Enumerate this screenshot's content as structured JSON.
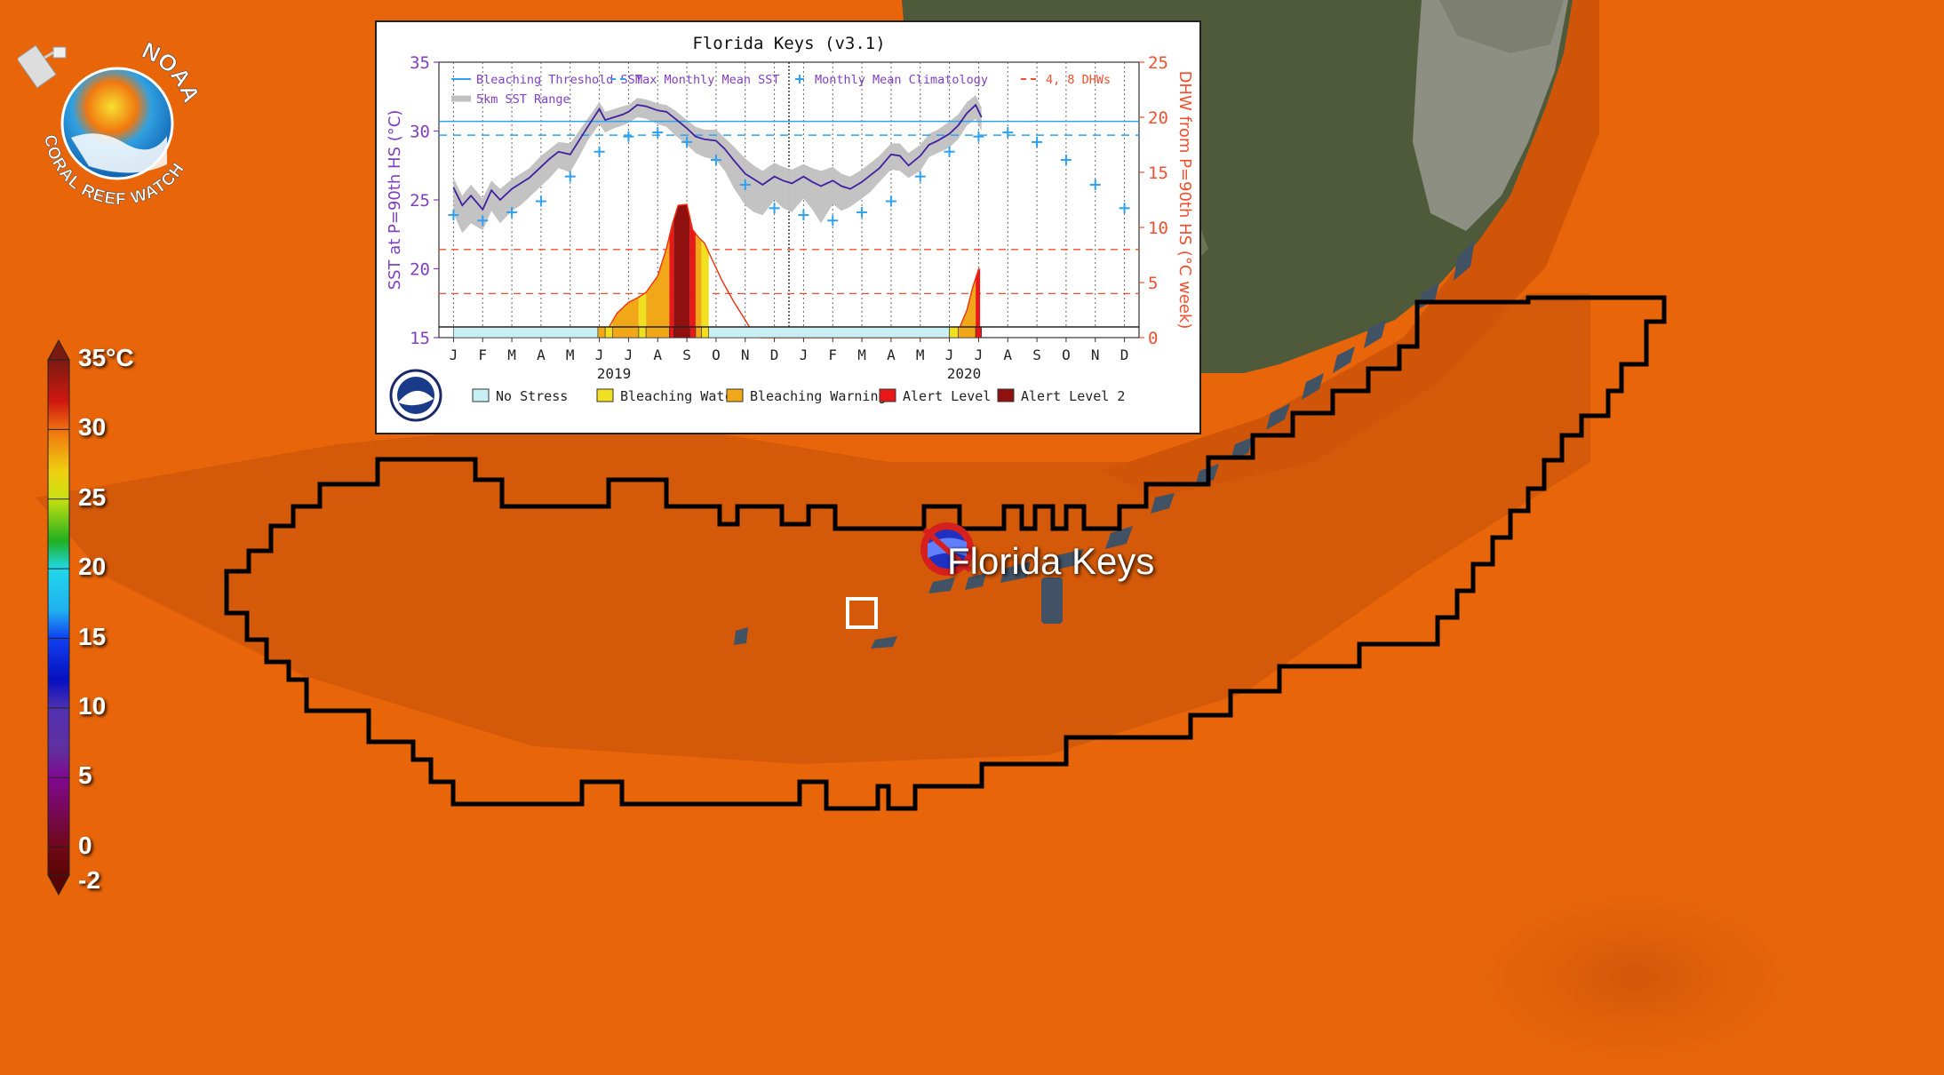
{
  "agency_logo": {
    "text_top": "NOAA",
    "text_bottom": "CORAL REEF WATCH"
  },
  "colorbar": {
    "labels": [
      "35°C",
      "30",
      "25",
      "20",
      "15",
      "10",
      "5",
      "0",
      "-2"
    ],
    "stops": [
      {
        "value": 35,
        "color": "#7a1a10"
      },
      {
        "value": 32,
        "color": "#d01810"
      },
      {
        "value": 30,
        "color": "#f07010"
      },
      {
        "value": 27,
        "color": "#f0d010"
      },
      {
        "value": 25,
        "color": "#c8e010"
      },
      {
        "value": 22,
        "color": "#20b020"
      },
      {
        "value": 20,
        "color": "#20d8e8"
      },
      {
        "value": 17,
        "color": "#20b0f0"
      },
      {
        "value": 15,
        "color": "#1040f0"
      },
      {
        "value": 12,
        "color": "#0810c0"
      },
      {
        "value": 10,
        "color": "#5030b0"
      },
      {
        "value": 7,
        "color": "#6030a0"
      },
      {
        "value": 5,
        "color": "#800890"
      },
      {
        "value": 0,
        "color": "#700818"
      },
      {
        "value": -2,
        "color": "#5a0505"
      }
    ]
  },
  "map": {
    "site_label": "Florida Keys",
    "sea_color": "#e8650a",
    "region_color": "#d45a0a"
  },
  "chart_data": {
    "type": "line",
    "title": "Florida Keys (v3.1)",
    "ylabel": "SST at P=90th HS (°C)",
    "y2label": "DHW from P=90th HS (°C week)",
    "ylim": [
      15,
      35
    ],
    "y2lim": [
      0,
      25
    ],
    "yticks": [
      "35",
      "30",
      "25",
      "20",
      "15"
    ],
    "y2ticks": [
      "25",
      "20",
      "15",
      "10",
      "5",
      "0"
    ],
    "month_labels": [
      "J",
      "F",
      "M",
      "A",
      "M",
      "J",
      "J",
      "A",
      "S",
      "O",
      "N",
      "D",
      "J",
      "F",
      "M",
      "A",
      "M",
      "J",
      "J",
      "A",
      "S",
      "O",
      "N",
      "D"
    ],
    "year_labels": [
      "2019",
      "2020"
    ],
    "bleaching_threshold_sst": 30.7,
    "max_monthly_mean_sst": 29.7,
    "dhw_reference_lines": [
      4,
      8
    ],
    "monthly_mean_climatology": [
      23.9,
      23.5,
      24.1,
      24.9,
      26.7,
      28.5,
      29.6,
      29.9,
      29.2,
      27.9,
      26.1,
      24.4,
      23.9,
      23.5,
      24.1,
      24.9,
      26.7,
      28.5,
      29.6,
      29.9,
      29.2,
      27.9,
      26.1,
      24.4
    ],
    "sst_series": {
      "name": "SST",
      "x_months": [
        0,
        0.3,
        0.6,
        1,
        1.3,
        1.6,
        2,
        2.3,
        2.6,
        3,
        3.3,
        3.6,
        4,
        4.3,
        4.6,
        5,
        5.2,
        5.5,
        5.8,
        6,
        6.3,
        6.6,
        7,
        7.3,
        7.6,
        8,
        8.3,
        8.6,
        9,
        9.3,
        9.6,
        10,
        10.3,
        10.6,
        11,
        11.3,
        11.6,
        12,
        12.3,
        12.6,
        13,
        13.3,
        13.6,
        14,
        14.3,
        14.6,
        15,
        15.3,
        15.6,
        16,
        16.3,
        16.6,
        17,
        17.3,
        17.6,
        17.9,
        18.1
      ],
      "values": [
        25.9,
        24.6,
        25.3,
        24.3,
        25.7,
        25.0,
        25.8,
        26.2,
        26.6,
        27.4,
        28.0,
        28.5,
        28.3,
        29.3,
        30.3,
        31.6,
        30.8,
        31.0,
        31.2,
        31.4,
        31.9,
        31.8,
        31.5,
        31.4,
        30.9,
        30.2,
        29.6,
        29.4,
        29.3,
        28.7,
        27.9,
        26.9,
        26.5,
        26.1,
        26.7,
        26.4,
        26.2,
        26.7,
        26.3,
        26.0,
        26.4,
        26.0,
        25.8,
        26.3,
        26.8,
        27.3,
        28.3,
        28.2,
        27.5,
        28.2,
        29.0,
        29.3,
        29.8,
        30.4,
        31.3,
        31.9,
        31.0
      ]
    },
    "sst_range": {
      "name": "5km SST Range",
      "low": [
        24.0,
        22.6,
        23.3,
        22.8,
        24.2,
        23.3,
        24.2,
        24.6,
        25.2,
        26.0,
        26.6,
        27.3,
        27.0,
        28.1,
        29.3,
        30.5,
        29.9,
        30.2,
        30.4,
        30.6,
        31.0,
        30.9,
        30.5,
        30.3,
        29.7,
        29.0,
        28.4,
        28.1,
        27.9,
        27.1,
        25.9,
        24.6,
        24.1,
        23.9,
        25.0,
        24.4,
        24.1,
        25.1,
        24.3,
        23.3,
        24.7,
        24.2,
        24.5,
        25.1,
        25.6,
        26.3,
        27.2,
        27.1,
        26.6,
        27.1,
        28.1,
        28.4,
        28.8,
        29.4,
        30.4,
        30.9,
        30.0
      ],
      "high": [
        26.6,
        25.3,
        26.1,
        25.1,
        26.4,
        25.8,
        26.5,
        26.9,
        27.3,
        28.2,
        28.7,
        29.2,
        29.1,
        30.0,
        30.9,
        32.1,
        31.4,
        31.6,
        31.8,
        31.9,
        32.4,
        32.3,
        32.0,
        31.9,
        31.5,
        30.8,
        30.3,
        30.1,
        30.1,
        29.5,
        28.9,
        28.0,
        27.5,
        27.1,
        27.7,
        27.4,
        27.2,
        27.6,
        27.3,
        27.1,
        27.4,
        26.9,
        26.7,
        27.2,
        27.7,
        28.2,
        29.1,
        29.1,
        28.4,
        29.0,
        29.8,
        30.1,
        30.7,
        31.2,
        32.1,
        32.6,
        31.7
      ]
    },
    "dhw_series": {
      "name": "DHW",
      "x_months": [
        5,
        5.3,
        5.6,
        6,
        6.3,
        6.6,
        7,
        7.3,
        7.5,
        7.7,
        8,
        8.2,
        8.4,
        8.6,
        8.9,
        9.2,
        9.6,
        10,
        10.3,
        10.5,
        17,
        17.3,
        17.6,
        17.8,
        18,
        18.05
      ],
      "values": [
        0,
        0.8,
        2.2,
        3.2,
        3.6,
        4.1,
        5.6,
        8.1,
        10.3,
        12.0,
        12.1,
        9.8,
        9.1,
        8.6,
        6.9,
        5.2,
        3.3,
        1.6,
        0.3,
        0,
        0,
        0.6,
        2.5,
        4.6,
        6.2,
        6.2
      ]
    },
    "stress_levels": {
      "categories": [
        "No Stress",
        "Bleaching Watch",
        "Bleaching Warning",
        "Alert Level 1",
        "Alert Level 2"
      ],
      "colors": [
        "#c8f0f4",
        "#f0e020",
        "#f0a818",
        "#e81818",
        "#901010"
      ]
    },
    "stress_bar": [
      {
        "from": 0,
        "to": 4.95,
        "level": 0
      },
      {
        "from": 4.95,
        "to": 5.2,
        "level": 2
      },
      {
        "from": 5.2,
        "to": 5.45,
        "level": 1
      },
      {
        "from": 5.45,
        "to": 6.35,
        "level": 2
      },
      {
        "from": 6.35,
        "to": 6.6,
        "level": 1
      },
      {
        "from": 6.6,
        "to": 7.4,
        "level": 2
      },
      {
        "from": 7.4,
        "to": 7.55,
        "level": 3
      },
      {
        "from": 7.55,
        "to": 8.1,
        "level": 4
      },
      {
        "from": 8.1,
        "to": 8.3,
        "level": 3
      },
      {
        "from": 8.3,
        "to": 8.5,
        "level": 2
      },
      {
        "from": 8.5,
        "to": 8.75,
        "level": 1
      },
      {
        "from": 8.75,
        "to": 17.0,
        "level": 0
      },
      {
        "from": 17.0,
        "to": 17.3,
        "level": 1
      },
      {
        "from": 17.3,
        "to": 17.9,
        "level": 2
      },
      {
        "from": 17.9,
        "to": 18.1,
        "level": 3
      }
    ],
    "legend_top": [
      {
        "label": "Bleaching Threshold SST",
        "color": "#30a0f0",
        "style": "solid"
      },
      {
        "label": "Max Monthly Mean SST",
        "color": "#30a0f0",
        "style": "dashed"
      },
      {
        "label": "Monthly Mean Climatology",
        "color": "#30a0f0",
        "style": "plus"
      },
      {
        "label": "4, 8 DHWs",
        "color": "#f05030",
        "style": "dashed"
      },
      {
        "label": "5km SST Range",
        "color": "#c0c0c0",
        "style": "band"
      }
    ],
    "colors": {
      "sst": "#4020a0",
      "threshold": "#30a0f0",
      "dhw": "#f03010",
      "dhw_fill": "#e81818",
      "range": "#c0c0c0",
      "left_axis": "#8040c0",
      "right_axis": "#f05030"
    }
  }
}
